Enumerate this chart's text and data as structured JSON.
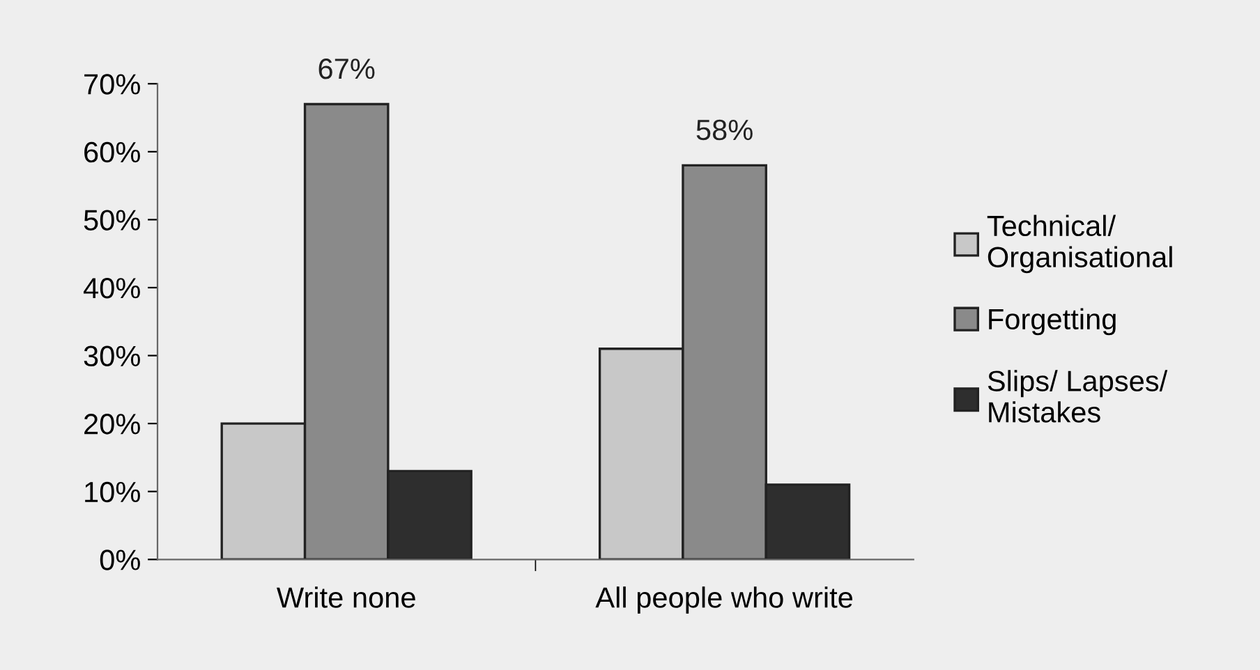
{
  "chart_data": {
    "type": "bar",
    "categories": [
      "Write none",
      "All people who write"
    ],
    "series": [
      {
        "name": "Technical/ Organisational",
        "color": "#c8c8c8",
        "values": [
          20,
          31
        ]
      },
      {
        "name": "Forgetting",
        "color": "#8a8a8a",
        "values": [
          67,
          58
        ],
        "value_labels": [
          "67%",
          "58%"
        ]
      },
      {
        "name": "Slips/ Lapses/ Mistakes",
        "color": "#2e2e2e",
        "values": [
          13,
          11
        ]
      }
    ],
    "ylim": [
      0,
      70
    ],
    "yticks": [
      {
        "value": 0,
        "label": "0%"
      },
      {
        "value": 10,
        "label": "10%"
      },
      {
        "value": 20,
        "label": "20%"
      },
      {
        "value": 30,
        "label": "30%"
      },
      {
        "value": 40,
        "label": "40%"
      },
      {
        "value": 50,
        "label": "50%"
      },
      {
        "value": 60,
        "label": "60%"
      },
      {
        "value": 70,
        "label": "70%"
      }
    ],
    "grid": false,
    "legend": "right"
  }
}
